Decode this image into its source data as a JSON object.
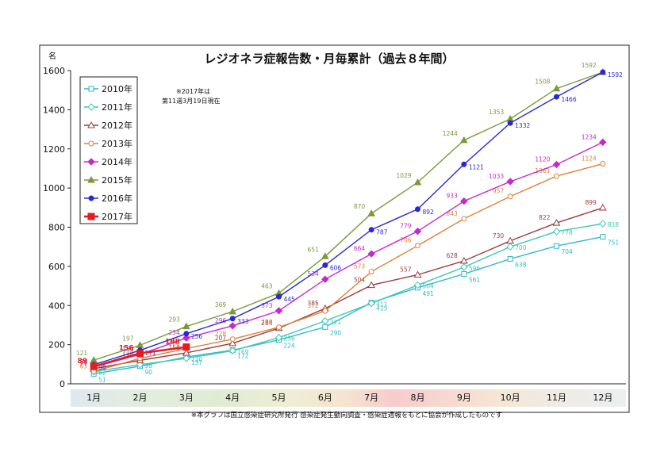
{
  "chart_data": {
    "type": "line",
    "title": "レジオネラ症報告数・月毎累計（過去８年間）",
    "ylabel": "名",
    "ylim": [
      0,
      1600
    ],
    "yticks": [
      0,
      200,
      400,
      600,
      800,
      1000,
      1200,
      1400,
      1600
    ],
    "categories": [
      "1月",
      "2月",
      "3月",
      "4月",
      "5月",
      "6月",
      "7月",
      "8月",
      "9月",
      "10月",
      "11月",
      "12月"
    ],
    "note": "※2017年は\n第11週3月19日現在",
    "footnote": "※本グラフは国立感染症研究所発行 感染症発生動向調査・感染症週報をもとに協会が作成したものです",
    "legend_position": "top-left",
    "grid": false,
    "series": [
      {
        "name": "2010年",
        "color": "#31b7d2",
        "marker": "square-open",
        "values": [
          51,
          90,
          137,
          172,
          224,
          290,
          415,
          491,
          561,
          638,
          704,
          751
        ]
      },
      {
        "name": "2011年",
        "color": "#3cc9b0",
        "marker": "diamond-open",
        "values": [
          62,
          98,
          130,
          169,
          236,
          321,
          411,
          504,
          596,
          700,
          778,
          818
        ]
      },
      {
        "name": "2012年",
        "color": "#9b3d3d",
        "marker": "triangle-open",
        "values": [
          77,
          120,
          158,
          207,
          284,
          385,
          504,
          557,
          628,
          730,
          822,
          899
        ]
      },
      {
        "name": "2013年",
        "color": "#e0813a",
        "marker": "circle-open",
        "values": [
          63,
          130,
          180,
          228,
          289,
          372,
          573,
          706,
          843,
          957,
          1061,
          1124
        ]
      },
      {
        "name": "2014年",
        "color": "#c42ac8",
        "marker": "diamond",
        "values": [
          86,
          150,
          234,
          296,
          373,
          534,
          664,
          779,
          933,
          1033,
          1120,
          1234
        ]
      },
      {
        "name": "2015年",
        "color": "#7a9a3a",
        "marker": "triangle",
        "values": [
          121,
          197,
          293,
          369,
          463,
          651,
          870,
          1029,
          1244,
          1353,
          1508,
          1592
        ]
      },
      {
        "name": "2016年",
        "color": "#2828d6",
        "marker": "circle",
        "values": [
          98,
          171,
          256,
          333,
          445,
          606,
          787,
          892,
          1121,
          1332,
          1466,
          1592
        ]
      },
      {
        "name": "2017年",
        "color": "#e81c1c",
        "marker": "square",
        "values": [
          89,
          156,
          188,
          null,
          null,
          null,
          null,
          null,
          null,
          null,
          null,
          null
        ]
      }
    ]
  }
}
